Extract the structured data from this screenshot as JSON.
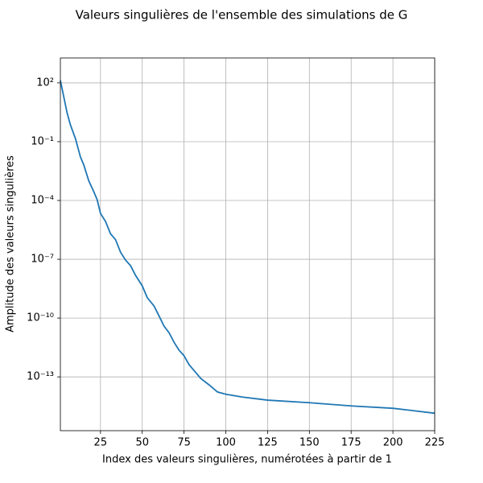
{
  "chart_data": {
    "type": "line",
    "title": "Valeurs singulières de l'ensemble des simulations de G",
    "xlabel": "Index des valeurs singulières, numérotées à partir de 1",
    "ylabel": "Amplitude des valeurs singulières",
    "yscale": "log",
    "grid": true,
    "xlim": [
      1,
      225
    ],
    "ylim": [
      1860,
      1.8e-16
    ],
    "xticks": [
      25,
      50,
      75,
      100,
      125,
      150,
      175,
      200,
      225
    ],
    "yticks": [
      {
        "value": 100,
        "label": "10²"
      },
      {
        "value": 0.1,
        "label": "10⁻¹"
      },
      {
        "value": 0.0001,
        "label": "10⁻⁴"
      },
      {
        "value": 1e-07,
        "label": "10⁻⁷"
      },
      {
        "value": 1e-10,
        "label": "10⁻¹⁰"
      },
      {
        "value": 1e-13,
        "label": "10⁻¹³"
      }
    ],
    "series": [
      {
        "color": "#1f77b4",
        "x": [
          1,
          3,
          5,
          7,
          10,
          13,
          15,
          18,
          21,
          23,
          25,
          28,
          31,
          34,
          37,
          40,
          43,
          46,
          50,
          53,
          57,
          60,
          63,
          66,
          69,
          72,
          75,
          78,
          81,
          85,
          90,
          95,
          100,
          110,
          125,
          150,
          175,
          200,
          225
        ],
        "values": [
          132,
          20,
          3.0,
          0.72,
          0.145,
          0.0166,
          0.0065,
          0.001,
          0.00028,
          0.00011,
          2.2e-05,
          8.5e-06,
          2e-06,
          1e-06,
          2.3e-07,
          9.1e-08,
          4.7e-08,
          1.5e-08,
          4.4e-09,
          1.1e-09,
          4.2e-10,
          1.3e-10,
          3.9e-11,
          1.8e-11,
          5.9e-12,
          2.3e-12,
          1.2e-12,
          4.2e-13,
          2.1e-13,
          8.3e-14,
          3.9e-14,
          1.7e-14,
          1.3e-14,
          9.3e-15,
          6.5e-15,
          4.8e-15,
          3.3e-15,
          2.5e-15,
          1.4e-15
        ]
      }
    ]
  }
}
